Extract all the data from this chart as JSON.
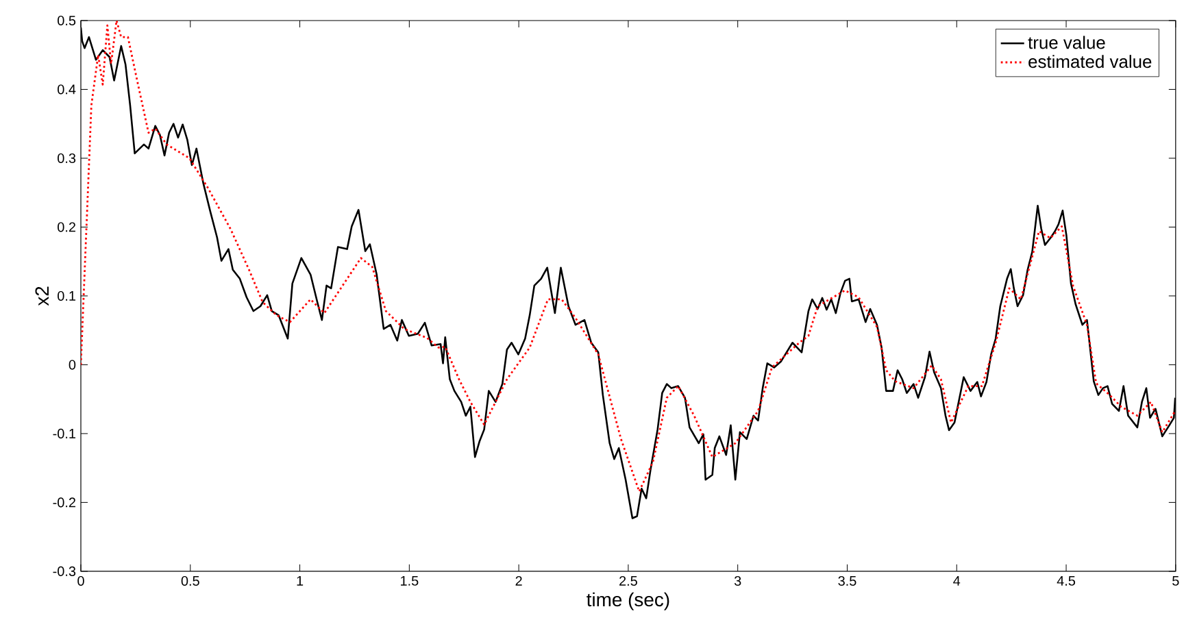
{
  "chart_data": {
    "type": "line",
    "xlabel": "time (sec)",
    "ylabel": "x2",
    "xlim": [
      0,
      5
    ],
    "ylim": [
      -0.3,
      0.5
    ],
    "xticks": [
      0,
      0.5,
      1,
      1.5,
      2,
      2.5,
      3,
      3.5,
      4,
      4.5,
      5
    ],
    "yticks": [
      -0.3,
      -0.2,
      -0.1,
      0,
      0.1,
      0.2,
      0.3,
      0.4,
      0.5
    ],
    "legend": "top right",
    "grid": false,
    "series": [
      {
        "name": "true value",
        "color": "#000000",
        "line_style": "solid",
        "x": [
          0,
          0.006,
          0.017,
          0.037,
          0.069,
          0.1,
          0.131,
          0.152,
          0.184,
          0.204,
          0.225,
          0.246,
          0.288,
          0.309,
          0.34,
          0.361,
          0.382,
          0.403,
          0.423,
          0.444,
          0.465,
          0.486,
          0.507,
          0.528,
          0.559,
          0.59,
          0.622,
          0.642,
          0.674,
          0.694,
          0.726,
          0.757,
          0.788,
          0.82,
          0.851,
          0.872,
          0.903,
          0.945,
          0.966,
          1.007,
          1.049,
          1.08,
          1.101,
          1.122,
          1.143,
          1.174,
          1.216,
          1.237,
          1.268,
          1.299,
          1.32,
          1.351,
          1.383,
          1.414,
          1.445,
          1.466,
          1.498,
          1.539,
          1.571,
          1.602,
          1.643,
          1.654,
          1.664,
          1.685,
          1.706,
          1.737,
          1.758,
          1.779,
          1.8,
          1.821,
          1.842,
          1.863,
          1.894,
          1.925,
          1.946,
          1.967,
          1.998,
          2.029,
          2.05,
          2.071,
          2.102,
          2.13,
          2.165,
          2.192,
          2.227,
          2.259,
          2.3,
          2.331,
          2.363,
          2.384,
          2.415,
          2.436,
          2.457,
          2.488,
          2.519,
          2.54,
          2.561,
          2.582,
          2.603,
          2.634,
          2.655,
          2.676,
          2.697,
          2.728,
          2.759,
          2.78,
          2.822,
          2.843,
          2.853,
          2.884,
          2.895,
          2.916,
          2.947,
          2.968,
          2.989,
          3.01,
          3.041,
          3.072,
          3.093,
          3.114,
          3.135,
          3.166,
          3.198,
          3.25,
          3.292,
          3.323,
          3.34,
          3.365,
          3.386,
          3.406,
          3.427,
          3.448,
          3.469,
          3.49,
          3.51,
          3.521,
          3.552,
          3.584,
          3.605,
          3.636,
          3.657,
          3.678,
          3.709,
          3.73,
          3.751,
          3.772,
          3.803,
          3.824,
          3.855,
          3.876,
          3.897,
          3.928,
          3.949,
          3.965,
          3.99,
          4.032,
          4.063,
          4.094,
          4.111,
          4.136,
          4.157,
          4.178,
          4.199,
          4.23,
          4.247,
          4.261,
          4.278,
          4.303,
          4.324,
          4.345,
          4.37,
          4.386,
          4.403,
          4.428,
          4.449,
          4.465,
          4.484,
          4.501,
          4.522,
          4.543,
          4.574,
          4.595,
          4.626,
          4.647,
          4.668,
          4.689,
          4.71,
          4.741,
          4.762,
          4.783,
          4.825,
          4.846,
          4.866,
          4.883,
          4.908,
          4.939,
          4.971,
          4.992,
          4.998
        ],
        "values": [
          0.49,
          0.47,
          0.46,
          0.476,
          0.443,
          0.457,
          0.447,
          0.413,
          0.463,
          0.436,
          0.377,
          0.307,
          0.32,
          0.314,
          0.347,
          0.334,
          0.304,
          0.337,
          0.35,
          0.33,
          0.349,
          0.327,
          0.29,
          0.314,
          0.264,
          0.224,
          0.185,
          0.151,
          0.168,
          0.138,
          0.125,
          0.098,
          0.078,
          0.085,
          0.101,
          0.078,
          0.072,
          0.038,
          0.118,
          0.155,
          0.131,
          0.091,
          0.065,
          0.115,
          0.111,
          0.171,
          0.168,
          0.201,
          0.225,
          0.165,
          0.175,
          0.131,
          0.052,
          0.058,
          0.035,
          0.065,
          0.042,
          0.045,
          0.061,
          0.028,
          0.03,
          0.002,
          0.04,
          -0.021,
          -0.038,
          -0.054,
          -0.074,
          -0.061,
          -0.134,
          -0.111,
          -0.094,
          -0.038,
          -0.054,
          -0.028,
          0.022,
          0.032,
          0.015,
          0.038,
          0.072,
          0.115,
          0.125,
          0.141,
          0.075,
          0.141,
          0.085,
          0.058,
          0.065,
          0.032,
          0.018,
          -0.044,
          -0.114,
          -0.137,
          -0.121,
          -0.167,
          -0.223,
          -0.22,
          -0.18,
          -0.194,
          -0.15,
          -0.094,
          -0.041,
          -0.028,
          -0.034,
          -0.031,
          -0.048,
          -0.091,
          -0.114,
          -0.101,
          -0.167,
          -0.16,
          -0.121,
          -0.104,
          -0.131,
          -0.088,
          -0.167,
          -0.098,
          -0.108,
          -0.074,
          -0.081,
          -0.034,
          0.002,
          -0.004,
          0.005,
          0.032,
          0.018,
          0.078,
          0.095,
          0.081,
          0.097,
          0.08,
          0.095,
          0.075,
          0.104,
          0.122,
          0.125,
          0.092,
          0.095,
          0.062,
          0.081,
          0.058,
          0.025,
          -0.038,
          -0.038,
          -0.008,
          -0.021,
          -0.041,
          -0.028,
          -0.048,
          -0.018,
          0.019,
          -0.011,
          -0.034,
          -0.074,
          -0.095,
          -0.084,
          -0.018,
          -0.038,
          -0.025,
          -0.046,
          -0.025,
          0.015,
          0.038,
          0.085,
          0.125,
          0.139,
          0.111,
          0.085,
          0.101,
          0.138,
          0.164,
          0.231,
          0.198,
          0.174,
          0.184,
          0.194,
          0.204,
          0.224,
          0.188,
          0.118,
          0.088,
          0.058,
          0.065,
          -0.024,
          -0.044,
          -0.034,
          -0.031,
          -0.057,
          -0.067,
          -0.031,
          -0.074,
          -0.091,
          -0.054,
          -0.034,
          -0.077,
          -0.064,
          -0.104,
          -0.088,
          -0.077,
          -0.048
        ]
      },
      {
        "name": "estimated value",
        "color": "#ff0000",
        "line_style": "dotted",
        "x": [
          0,
          0.027,
          0.048,
          0.079,
          0.1,
          0.121,
          0.138,
          0.163,
          0.184,
          0.215,
          0.257,
          0.309,
          0.34,
          0.392,
          0.496,
          0.58,
          0.684,
          0.768,
          0.83,
          0.893,
          0.955,
          1.049,
          1.112,
          1.279,
          1.331,
          1.393,
          1.477,
          1.581,
          1.633,
          1.664,
          1.727,
          1.779,
          1.842,
          1.946,
          2.05,
          2.133,
          2.196,
          2.259,
          2.363,
          2.467,
          2.55,
          2.613,
          2.676,
          2.728,
          2.801,
          2.884,
          2.989,
          3.093,
          3.156,
          3.281,
          3.323,
          3.365,
          3.49,
          3.552,
          3.636,
          3.678,
          3.719,
          3.803,
          3.886,
          3.928,
          3.974,
          4.053,
          4.115,
          4.178,
          4.24,
          4.293,
          4.376,
          4.428,
          4.48,
          4.532,
          4.595,
          4.637,
          4.699,
          4.751,
          4.825,
          4.887,
          4.939,
          4.998
        ],
        "values": [
          0,
          0.211,
          0.377,
          0.45,
          0.407,
          0.493,
          0.437,
          0.5,
          0.476,
          0.476,
          0.413,
          0.337,
          0.343,
          0.32,
          0.3,
          0.257,
          0.197,
          0.138,
          0.091,
          0.072,
          0.062,
          0.095,
          0.075,
          0.155,
          0.142,
          0.078,
          0.052,
          0.039,
          0.025,
          0.026,
          -0.021,
          -0.054,
          -0.087,
          -0.021,
          0.025,
          0.095,
          0.095,
          0.068,
          0.015,
          -0.108,
          -0.184,
          -0.141,
          -0.048,
          -0.031,
          -0.074,
          -0.134,
          -0.114,
          -0.067,
          -0.004,
          0.032,
          0.042,
          0.085,
          0.108,
          0.098,
          0.055,
          -0.008,
          -0.024,
          -0.034,
          -0.001,
          -0.021,
          -0.084,
          -0.031,
          -0.031,
          0.032,
          0.111,
          0.095,
          0.194,
          0.184,
          0.201,
          0.114,
          0.058,
          -0.027,
          -0.044,
          -0.061,
          -0.074,
          -0.054,
          -0.098,
          -0.067
        ]
      }
    ]
  }
}
